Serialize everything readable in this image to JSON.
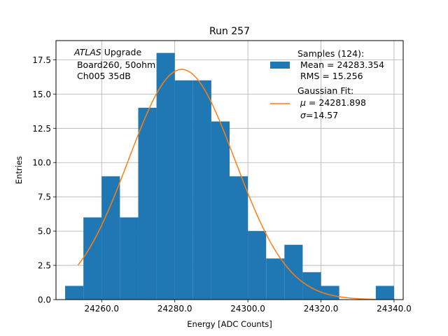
{
  "chart_data": {
    "type": "bar",
    "title": "Run 257",
    "xlabel": "Energy [ADC Counts]",
    "ylabel": "Entries",
    "xlim": [
      24247.5,
      24342.5
    ],
    "ylim": [
      0,
      18.9
    ],
    "grid": true,
    "x_ticks": [
      24260,
      24280,
      24300,
      24320,
      24340
    ],
    "x_tick_labels": [
      "24260.0",
      "24280.0",
      "24300.0",
      "24320.0",
      "24340.0"
    ],
    "y_ticks": [
      0,
      2.5,
      5,
      7.5,
      10,
      12.5,
      15,
      17.5
    ],
    "y_tick_labels": [
      "0.0",
      "2.5",
      "5.0",
      "7.5",
      "10.0",
      "12.5",
      "15.0",
      "17.5"
    ],
    "bin_edges": [
      24250,
      24255,
      24260,
      24265,
      24270,
      24275,
      24280,
      24285,
      24290,
      24295,
      24300,
      24305,
      24310,
      24315,
      24320,
      24325,
      24330,
      24335,
      24340
    ],
    "counts": [
      1,
      6,
      9,
      6,
      14,
      18,
      16,
      16,
      13,
      9,
      5,
      3,
      4,
      2,
      1,
      0,
      0,
      1
    ],
    "fit": {
      "mu": 24281.898,
      "sigma": 14.57,
      "peak": 16.8,
      "x_range": [
        24253.5,
        24335
      ]
    },
    "annotation": {
      "italic": "ATLAS",
      "line1": " Upgrade",
      "line2": " Board260, 50ohm",
      "line3": " Ch005 35dB"
    },
    "legend": {
      "placement": "top-right",
      "samples_title": "Samples (124):",
      "samples_mean": " Mean = 24283.354",
      "samples_rms": " RMS = 15.256",
      "fit_title": "Gaussian Fit:",
      "fit_mu_symbol": "μ",
      "fit_mu_text": " = 24281.898",
      "fit_sigma_symbol": "σ",
      "fit_sigma_text": "=14.57"
    },
    "colors": {
      "bars": "#1f77b4",
      "fit": "#ff7f0e",
      "grid": "#b0b0b0"
    }
  }
}
